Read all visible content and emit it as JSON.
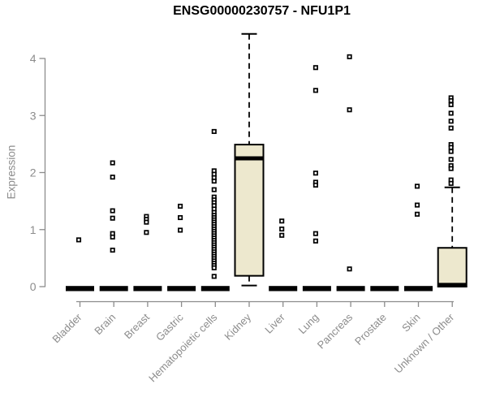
{
  "title": "ENSG00000230757 - NFU1P1",
  "ylabel": "Expression",
  "colors": {
    "box_fill": "#ede8ce",
    "box_stroke": "#000000",
    "median": "#000000",
    "axis": "#8c8c8c",
    "tick_label": "#8c8c8c",
    "title": "#000000",
    "outlier_stroke": "#000000",
    "outlier_fill": "#ffffff",
    "background": "#ffffff"
  },
  "chart_data": {
    "type": "boxplot",
    "title": "ENSG00000230757 - NFU1P1",
    "xlabel": "",
    "ylabel": "Expression",
    "ylim": [
      0,
      4.5
    ],
    "yticks": [
      0,
      1,
      2,
      3,
      4
    ],
    "grid": false,
    "legend": false,
    "categories": [
      "Bladder",
      "Brain",
      "Breast",
      "Gastric",
      "Hematopoietic cells",
      "Kidney",
      "Liver",
      "Lung",
      "Pancreas",
      "Prostate",
      "Skin",
      "Unknown / Other"
    ],
    "boxes": [
      {
        "category": "Bladder",
        "median": 0,
        "q1": 0,
        "q3": 0,
        "whisker_low": 0,
        "whisker_high": 0,
        "collapsed": true,
        "outliers": [
          0.82
        ]
      },
      {
        "category": "Brain",
        "median": 0,
        "q1": 0,
        "q3": 0,
        "whisker_low": 0,
        "whisker_high": 0,
        "collapsed": true,
        "outliers": [
          2.17,
          1.92,
          1.33,
          1.2,
          0.93,
          0.87,
          0.64
        ]
      },
      {
        "category": "Breast",
        "median": 0,
        "q1": 0,
        "q3": 0,
        "whisker_low": 0,
        "whisker_high": 0,
        "collapsed": true,
        "outliers": [
          1.23,
          1.18,
          1.13,
          0.95
        ]
      },
      {
        "category": "Gastric",
        "median": 0,
        "q1": 0,
        "q3": 0,
        "whisker_low": 0,
        "whisker_high": 0,
        "collapsed": true,
        "outliers": [
          1.41,
          1.21,
          0.99
        ]
      },
      {
        "category": "Hematopoietic cells",
        "median": 0,
        "q1": 0,
        "q3": 0,
        "whisker_low": 0,
        "whisker_high": 0,
        "collapsed": true,
        "outliers": [
          2.72,
          2.03,
          1.97,
          1.91,
          1.85,
          1.7,
          1.57,
          1.52,
          1.47,
          1.42,
          1.36,
          1.3,
          1.25,
          1.21,
          1.17,
          1.13,
          1.09,
          1.05,
          1.01,
          0.97,
          0.93,
          0.89,
          0.85,
          0.81,
          0.77,
          0.73,
          0.69,
          0.65,
          0.61,
          0.57,
          0.53,
          0.49,
          0.45,
          0.41,
          0.37,
          0.33,
          0.18
        ]
      },
      {
        "category": "Kidney",
        "median": 2.25,
        "q1": 0.19,
        "q3": 2.49,
        "whisker_low": 0.02,
        "whisker_high": 4.43,
        "collapsed": false,
        "outliers": []
      },
      {
        "category": "Liver",
        "median": 0,
        "q1": 0,
        "q3": 0,
        "whisker_low": 0,
        "whisker_high": 0,
        "collapsed": true,
        "outliers": [
          1.15,
          1.01,
          0.9
        ]
      },
      {
        "category": "Lung",
        "median": 0,
        "q1": 0,
        "q3": 0,
        "whisker_low": 0,
        "whisker_high": 0,
        "collapsed": true,
        "outliers": [
          3.84,
          3.44,
          1.99,
          1.83,
          1.78,
          0.93,
          0.8
        ]
      },
      {
        "category": "Pancreas",
        "median": 0,
        "q1": 0,
        "q3": 0,
        "whisker_low": 0,
        "whisker_high": 0,
        "collapsed": true,
        "outliers": [
          4.03,
          3.1,
          0.31
        ]
      },
      {
        "category": "Prostate",
        "median": 0,
        "q1": 0,
        "q3": 0,
        "whisker_low": 0,
        "whisker_high": 0,
        "collapsed": true,
        "outliers": []
      },
      {
        "category": "Skin",
        "median": 0,
        "q1": 0,
        "q3": 0,
        "whisker_low": 0,
        "whisker_high": 0,
        "collapsed": true,
        "outliers": [
          1.76,
          1.43,
          1.27
        ]
      },
      {
        "category": "Unknown / Other",
        "median": 0.03,
        "q1": 0,
        "q3": 0.68,
        "whisker_low": 0,
        "whisker_high": 1.74,
        "collapsed": false,
        "outliers": [
          3.31,
          3.26,
          3.19,
          3.04,
          2.9,
          2.78,
          2.49,
          2.44,
          2.37,
          2.23,
          2.12,
          2.07,
          1.87,
          1.81
        ]
      }
    ]
  }
}
